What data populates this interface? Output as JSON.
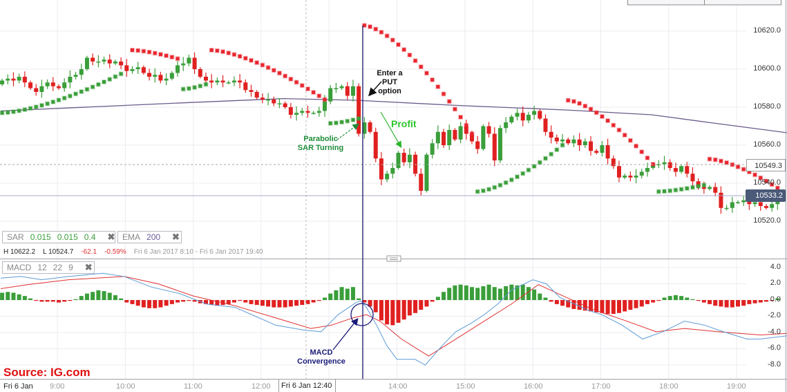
{
  "indicators": {
    "sar": {
      "label": "SAR",
      "step": "0.015",
      "increment": "0.015",
      "max": "0.4"
    },
    "ema": {
      "label": "EMA",
      "period": "200"
    },
    "macd": {
      "label": "MACD",
      "fast": "12",
      "slow": "22",
      "signal": "9"
    }
  },
  "info": {
    "high": "H 10622.2",
    "low": "L 10524.7",
    "change": "-62.1",
    "change_pct": "-0.59%",
    "range": "Fri 6 Jan 2017 8:10 - Fri 6 Jan 2017 19:40"
  },
  "price_axis": [
    "10620.0",
    "10600.0",
    "10580.0",
    "10560.0",
    "10540.0",
    "10520.0"
  ],
  "macd_axis": [
    "4.0",
    "2.0",
    "0.0",
    "-2.0",
    "-4.0",
    "-6.0",
    "-8.0"
  ],
  "crosshair_price": "10549.3",
  "current_price": "10533.2",
  "time_axis": {
    "date": "Fri 6 Jan",
    "ticks": [
      "9:00",
      "10:00",
      "11:00",
      "12:00",
      "14:00",
      "15:00",
      "16:00",
      "17:00",
      "18:00",
      "19:00"
    ],
    "crosshair_time": "Fri 6 Jan 12:40"
  },
  "annotations": {
    "put": "Enter a PUT option",
    "profit": "Profit",
    "sar_turning": "Parabolic SAR Turning",
    "macd_convergence": "MACD Convergence",
    "source": "Source: IG.com"
  },
  "colors": {
    "up": "#3a9e3a",
    "down": "#e02020",
    "ema": "#6a5a8a",
    "macd": "#5b9bd5",
    "signal": "#e03030",
    "sar_up": "#3a9e3a",
    "sar_down": "#e8262e",
    "annotation_navy": "#1a1a7a",
    "source": "#e01010"
  },
  "chart_data": {
    "type": "candlestick",
    "interval_minutes": 5,
    "start_time": "8:10",
    "first_open": 10592,
    "closes": [
      10594,
      10595,
      10594,
      10596,
      10593,
      10590,
      10588,
      10591,
      10593,
      10591,
      10590,
      10593,
      10596,
      10597,
      10600,
      10606,
      10604,
      10604,
      10605,
      10603,
      10604,
      10602,
      10599,
      10600,
      10601,
      10598,
      10596,
      10597,
      10594,
      10595,
      10598,
      10602,
      10603,
      10606,
      10600,
      10596,
      10594,
      10593,
      10594,
      10593,
      10593,
      10594,
      10593,
      10589,
      10588,
      10585,
      10584,
      10584,
      10582,
      10582,
      10580,
      10576,
      10577,
      10578,
      10577,
      10577,
      10578,
      10583,
      10590,
      10590,
      10591,
      10586,
      10591,
      10566,
      10572,
      10567,
      10553,
      10542,
      10545,
      10548,
      10556,
      10551,
      10555,
      10545,
      10536,
      10555,
      10561,
      10567,
      10560,
      10568,
      10563,
      10570,
      10566,
      10562,
      10558,
      10570,
      10566,
      10552,
      10569,
      10572,
      10575,
      10577,
      10573,
      10576,
      10578,
      10574,
      10567,
      10564,
      10562,
      10563,
      10561,
      10563,
      10560,
      10562,
      10557,
      10556,
      10560,
      10553,
      10549,
      10543,
      10544,
      10543,
      10544,
      10546,
      10548,
      10550,
      10550,
      10551,
      10548,
      10546,
      10549,
      10545,
      10541,
      10538,
      10537,
      10538,
      10535,
      10527,
      10527,
      10530,
      10530,
      10531,
      10529,
      10530,
      10528,
      10527,
      10529,
      10531
    ],
    "ylim": [
      10510,
      10636
    ],
    "ema200": [
      [
        "8:10",
        10578
      ],
      [
        "10:40",
        10582
      ],
      [
        "12:20",
        10584.5
      ],
      [
        "13:25",
        10583.6
      ],
      [
        "14:50",
        10581
      ],
      [
        "16:30",
        10578.5
      ],
      [
        "17:45",
        10576
      ],
      [
        "18:35",
        10572
      ],
      [
        "19:45",
        10566.5
      ]
    ],
    "sar_segments": [
      {
        "side": "below",
        "from": 0,
        "to": 21,
        "start": 10577,
        "end": 10597.5
      },
      {
        "side": "above",
        "from": 23,
        "to": 31,
        "start": 10610,
        "end": 10605.5
      },
      {
        "side": "below",
        "from": 32,
        "to": 36,
        "start": 10589.5,
        "end": 10592
      },
      {
        "side": "above",
        "from": 37,
        "to": 57,
        "start": 10610,
        "end": 10584
      },
      {
        "side": "below",
        "from": 58,
        "to": 63,
        "start": 10571.5,
        "end": 10574
      },
      {
        "side": "above",
        "from": 64,
        "to": 83,
        "start": 10623,
        "end": 10566
      },
      {
        "side": "below",
        "from": 84,
        "to": 99,
        "start": 10535.6,
        "end": 10560
      },
      {
        "side": "above",
        "from": 100,
        "to": 115,
        "start": 10583.6,
        "end": 10550
      },
      {
        "side": "below",
        "from": 116,
        "to": 124,
        "start": 10535.6,
        "end": 10539
      },
      {
        "side": "above",
        "from": 125,
        "to": 137,
        "start": 10552.7,
        "end": 10537.5
      }
    ],
    "macd_histogram": [
      0.9,
      1.0,
      0.9,
      0.7,
      0.5,
      0.2,
      -0.1,
      -0.2,
      -0.2,
      -0.2,
      -0.3,
      -0.2,
      -0.1,
      0.1,
      0.5,
      0.8,
      1.0,
      1.2,
      1.1,
      0.9,
      0.6,
      0.2,
      -0.3,
      -0.5,
      -0.7,
      -0.9,
      -1.0,
      -1.0,
      -0.9,
      -0.7,
      -0.5,
      -0.3,
      -0.2,
      -0.1,
      -0.2,
      -0.4,
      -0.5,
      -0.6,
      -0.7,
      -0.6,
      -0.5,
      -0.3,
      -0.1,
      -0.3,
      -0.5,
      -0.6,
      -0.7,
      -0.8,
      -0.9,
      -0.9,
      -0.9,
      -0.8,
      -0.7,
      -0.6,
      -0.5,
      -0.3,
      -0.1,
      0.3,
      0.8,
      1.2,
      1.6,
      1.4,
      1.6,
      0.2,
      -0.3,
      -0.8,
      -1.5,
      -2.5,
      -3.0,
      -3.1,
      -2.8,
      -2.4,
      -1.9,
      -1.6,
      -1.2,
      -0.8,
      -0.2,
      0.4,
      1.0,
      1.5,
      1.8,
      1.9,
      1.8,
      1.6,
      1.5,
      1.7,
      1.9,
      1.6,
      1.4,
      1.7,
      1.9,
      1.8,
      1.9,
      1.6,
      1.3,
      0.8,
      0.3,
      -0.2,
      -0.5,
      -0.7,
      -0.9,
      -1.1,
      -1.2,
      -1.3,
      -1.4,
      -1.5,
      -1.6,
      -1.7,
      -1.7,
      -1.6,
      -1.4,
      -1.2,
      -1.0,
      -0.8,
      -0.5,
      -0.3,
      -0.1,
      0.3,
      0.5,
      0.6,
      0.5,
      0.3,
      0.1,
      -0.1,
      -0.3,
      -0.5,
      -0.7,
      -0.8,
      -0.9,
      -0.9,
      -0.8,
      -0.7,
      -0.5,
      -0.4,
      -0.3,
      -0.2,
      -0.1,
      0.2
    ],
    "macd_line": [
      [
        "8:10",
        2.7
      ],
      [
        "8:28",
        2.9
      ],
      [
        "8:46",
        2.5
      ],
      [
        "9:10",
        2.9
      ],
      [
        "9:40",
        3.3
      ],
      [
        "9:59",
        2.9
      ],
      [
        "10:23",
        1.6
      ],
      [
        "10:48",
        0.8
      ],
      [
        "11:12",
        -0.5
      ],
      [
        "11:37",
        -0.9
      ],
      [
        "11:55",
        -2.0
      ],
      [
        "12:13",
        -3.1
      ],
      [
        "12:38",
        -3.7
      ],
      [
        "12:53",
        -3.9
      ],
      [
        "13:08",
        -1.8
      ],
      [
        "13:24",
        -0.3
      ],
      [
        "13:28",
        -0.1
      ],
      [
        "13:33",
        -0.9
      ],
      [
        "13:42",
        -3.1
      ],
      [
        "13:51",
        -5.6
      ],
      [
        "14:00",
        -7.3
      ],
      [
        "14:16",
        -7.3
      ],
      [
        "14:25",
        -8.0
      ],
      [
        "14:40",
        -5.6
      ],
      [
        "14:52",
        -3.9
      ],
      [
        "15:05",
        -2.9
      ],
      [
        "15:17",
        -1.8
      ],
      [
        "15:29",
        -0.5
      ],
      [
        "15:41",
        1.2
      ],
      [
        "16:00",
        2.5
      ],
      [
        "16:12",
        2.0
      ],
      [
        "16:24",
        0.3
      ],
      [
        "16:37",
        -0.5
      ],
      [
        "16:48",
        -1.2
      ],
      [
        "17:01",
        -1.8
      ],
      [
        "17:19",
        -3.1
      ],
      [
        "17:37",
        -4.8
      ],
      [
        "17:55",
        -3.9
      ],
      [
        "18:14",
        -2.6
      ],
      [
        "18:32",
        -3.1
      ],
      [
        "18:44",
        -3.7
      ],
      [
        "19:09",
        -4.8
      ],
      [
        "19:21",
        -4.8
      ],
      [
        "19:45",
        -4.4
      ]
    ],
    "signal_line": [
      [
        "8:10",
        1.4
      ],
      [
        "8:34",
        1.9
      ],
      [
        "9:10",
        2.5
      ],
      [
        "9:59",
        2.9
      ],
      [
        "10:29",
        2.0
      ],
      [
        "11:00",
        0.5
      ],
      [
        "11:37",
        -0.7
      ],
      [
        "12:13",
        -2.2
      ],
      [
        "12:44",
        -3.5
      ],
      [
        "13:02",
        -3.1
      ],
      [
        "13:21",
        -2.2
      ],
      [
        "13:33",
        -1.8
      ],
      [
        "13:45",
        -2.6
      ],
      [
        "14:04",
        -4.8
      ],
      [
        "14:28",
        -6.9
      ],
      [
        "14:52",
        -4.8
      ],
      [
        "15:17",
        -2.6
      ],
      [
        "15:41",
        -0.5
      ],
      [
        "16:05",
        1.9
      ],
      [
        "16:30",
        0.3
      ],
      [
        "16:54",
        -1.2
      ],
      [
        "17:19",
        -2.4
      ],
      [
        "17:49",
        -3.9
      ],
      [
        "18:14",
        -3.5
      ],
      [
        "18:44",
        -3.9
      ],
      [
        "19:21",
        -4.3
      ],
      [
        "19:45",
        -4.1
      ]
    ],
    "macd_ylim": [
      -9,
      5
    ],
    "grid": true
  }
}
